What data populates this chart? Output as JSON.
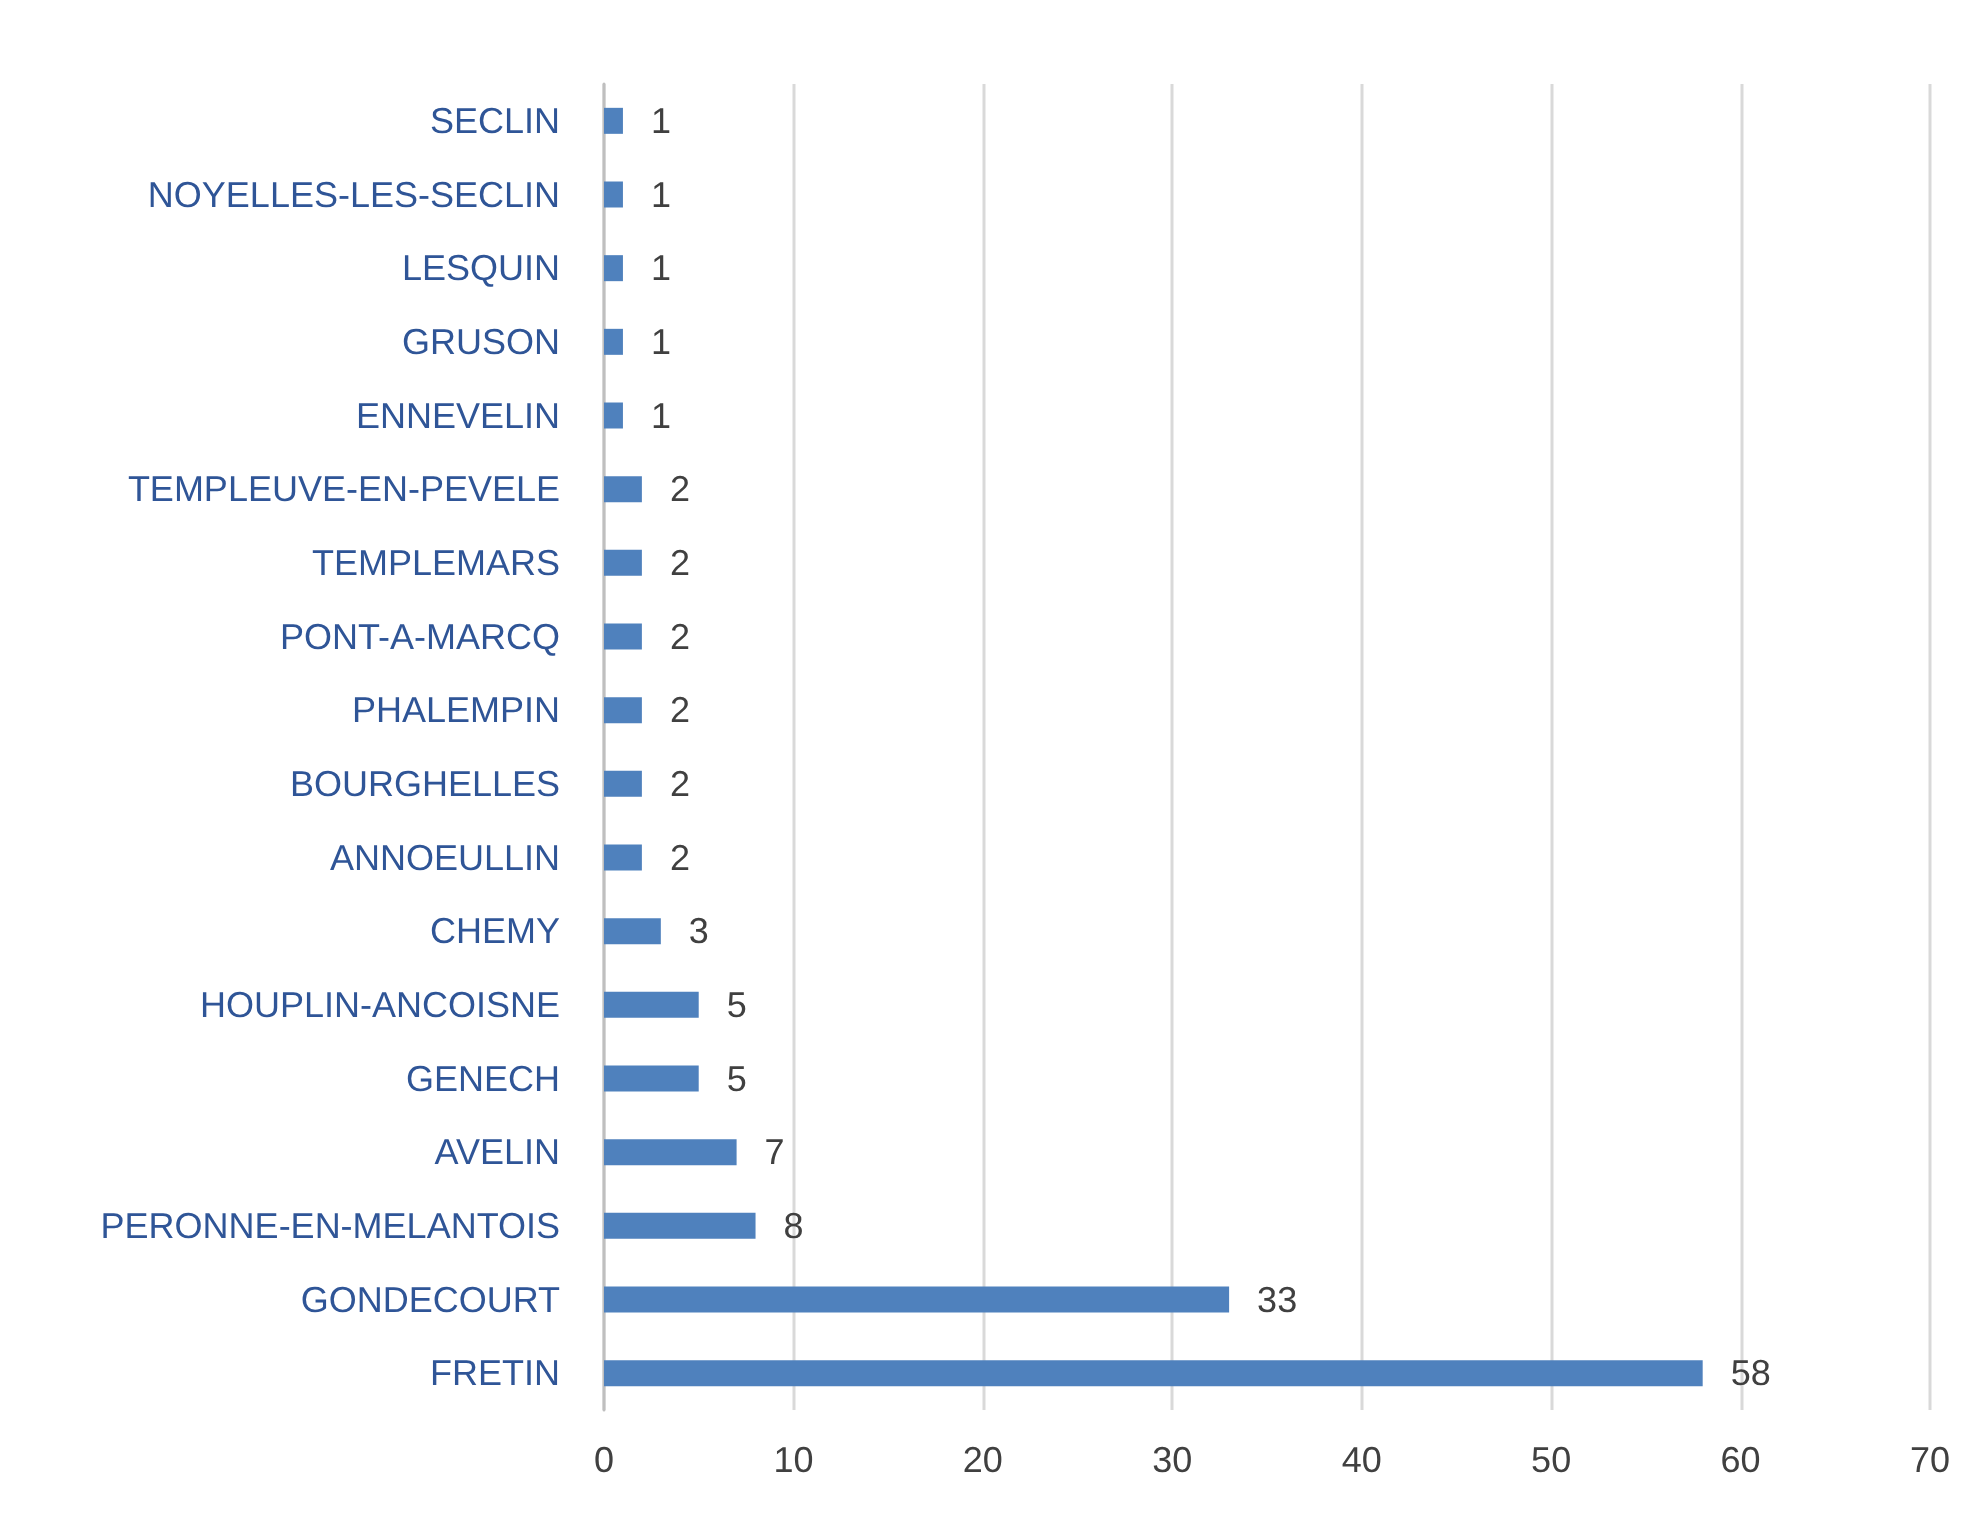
{
  "chart_data": {
    "type": "bar",
    "orientation": "horizontal",
    "categories": [
      "SECLIN",
      "NOYELLES-LES-SECLIN",
      "LESQUIN",
      "GRUSON",
      "ENNEVELIN",
      "TEMPLEUVE-EN-PEVELE",
      "TEMPLEMARS",
      "PONT-A-MARCQ",
      "PHALEMPIN",
      "BOURGHELLES",
      "ANNOEULLIN",
      "CHEMY",
      "HOUPLIN-ANCOISNE",
      "GENECH",
      "AVELIN",
      "PERONNE-EN-MELANTOIS",
      "GONDECOURT",
      "FRETIN"
    ],
    "values": [
      1,
      1,
      1,
      1,
      1,
      2,
      2,
      2,
      2,
      2,
      2,
      3,
      5,
      5,
      7,
      8,
      33,
      58
    ],
    "color": "#4f81bd",
    "xlim": [
      0,
      70
    ],
    "xticks": [
      0,
      10,
      20,
      30,
      40,
      50,
      60,
      70
    ],
    "grid": "x",
    "data_labels": true
  }
}
